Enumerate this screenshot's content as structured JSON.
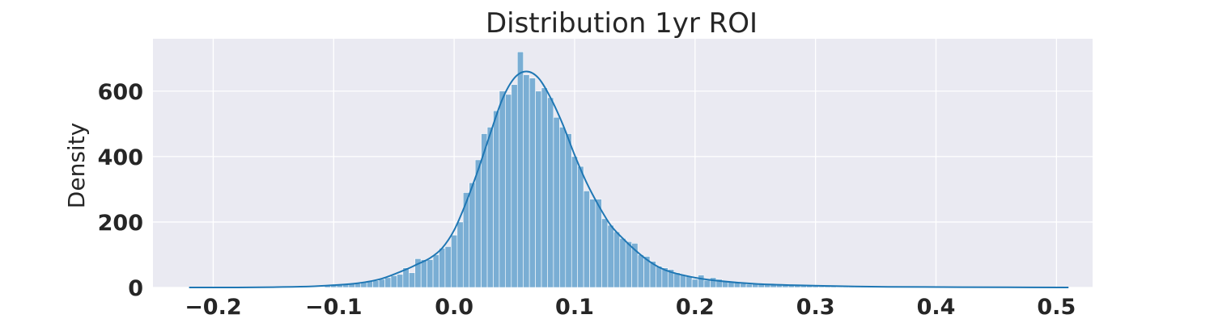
{
  "chart_data": {
    "type": "bar",
    "title": "Distribution 1yr ROI",
    "xlabel": "",
    "ylabel": "Density",
    "xlim": [
      -0.25,
      0.53
    ],
    "ylim": [
      0,
      760
    ],
    "xticks": [
      -0.2,
      -0.1,
      0.0,
      0.1,
      0.2,
      0.3,
      0.4,
      0.5
    ],
    "xtick_labels": [
      "−0.2",
      "−0.1",
      "0.0",
      "0.1",
      "0.2",
      "0.3",
      "0.4",
      "0.5"
    ],
    "yticks": [
      0,
      200,
      400,
      600
    ],
    "ytick_labels": [
      "0",
      "200",
      "400",
      "600"
    ],
    "grid": true,
    "colors": {
      "bar": "#7aaed4",
      "bar_edge": "#ffffff",
      "kde": "#1f77b4",
      "plot_bg": "#eaeaf2",
      "grid": "#ffffff"
    },
    "series": [
      {
        "kind": "histogram",
        "bins": [
          {
            "x": -0.105,
            "y": 5
          },
          {
            "x": -0.1,
            "y": 8
          },
          {
            "x": -0.095,
            "y": 9
          },
          {
            "x": -0.09,
            "y": 10
          },
          {
            "x": -0.085,
            "y": 11
          },
          {
            "x": -0.08,
            "y": 12
          },
          {
            "x": -0.075,
            "y": 16
          },
          {
            "x": -0.07,
            "y": 19
          },
          {
            "x": -0.065,
            "y": 21
          },
          {
            "x": -0.06,
            "y": 25
          },
          {
            "x": -0.055,
            "y": 30
          },
          {
            "x": -0.05,
            "y": 36
          },
          {
            "x": -0.045,
            "y": 40
          },
          {
            "x": -0.04,
            "y": 60
          },
          {
            "x": -0.035,
            "y": 45
          },
          {
            "x": -0.03,
            "y": 88
          },
          {
            "x": -0.025,
            "y": 85
          },
          {
            "x": -0.02,
            "y": 85
          },
          {
            "x": -0.015,
            "y": 100
          },
          {
            "x": -0.01,
            "y": 120
          },
          {
            "x": -0.005,
            "y": 125
          },
          {
            "x": 0.0,
            "y": 160
          },
          {
            "x": 0.005,
            "y": 200
          },
          {
            "x": 0.01,
            "y": 290
          },
          {
            "x": 0.015,
            "y": 320
          },
          {
            "x": 0.02,
            "y": 390
          },
          {
            "x": 0.025,
            "y": 470
          },
          {
            "x": 0.03,
            "y": 490
          },
          {
            "x": 0.035,
            "y": 540
          },
          {
            "x": 0.04,
            "y": 600
          },
          {
            "x": 0.045,
            "y": 590
          },
          {
            "x": 0.05,
            "y": 620
          },
          {
            "x": 0.055,
            "y": 720
          },
          {
            "x": 0.06,
            "y": 650
          },
          {
            "x": 0.065,
            "y": 640
          },
          {
            "x": 0.07,
            "y": 600
          },
          {
            "x": 0.075,
            "y": 610
          },
          {
            "x": 0.08,
            "y": 580
          },
          {
            "x": 0.085,
            "y": 520
          },
          {
            "x": 0.09,
            "y": 490
          },
          {
            "x": 0.095,
            "y": 470
          },
          {
            "x": 0.1,
            "y": 400
          },
          {
            "x": 0.105,
            "y": 370
          },
          {
            "x": 0.11,
            "y": 295
          },
          {
            "x": 0.115,
            "y": 270
          },
          {
            "x": 0.12,
            "y": 270
          },
          {
            "x": 0.125,
            "y": 210
          },
          {
            "x": 0.13,
            "y": 190
          },
          {
            "x": 0.135,
            "y": 170
          },
          {
            "x": 0.14,
            "y": 150
          },
          {
            "x": 0.145,
            "y": 140
          },
          {
            "x": 0.15,
            "y": 135
          },
          {
            "x": 0.155,
            "y": 100
          },
          {
            "x": 0.16,
            "y": 95
          },
          {
            "x": 0.165,
            "y": 80
          },
          {
            "x": 0.17,
            "y": 65
          },
          {
            "x": 0.175,
            "y": 60
          },
          {
            "x": 0.18,
            "y": 55
          },
          {
            "x": 0.185,
            "y": 45
          },
          {
            "x": 0.19,
            "y": 38
          },
          {
            "x": 0.195,
            "y": 35
          },
          {
            "x": 0.2,
            "y": 25
          },
          {
            "x": 0.205,
            "y": 38
          },
          {
            "x": 0.21,
            "y": 22
          },
          {
            "x": 0.215,
            "y": 30
          },
          {
            "x": 0.22,
            "y": 25
          },
          {
            "x": 0.225,
            "y": 20
          },
          {
            "x": 0.23,
            "y": 18
          },
          {
            "x": 0.235,
            "y": 16
          },
          {
            "x": 0.24,
            "y": 12
          },
          {
            "x": 0.245,
            "y": 10
          },
          {
            "x": 0.25,
            "y": 12
          },
          {
            "x": 0.255,
            "y": 10
          },
          {
            "x": 0.26,
            "y": 9
          },
          {
            "x": 0.265,
            "y": 8
          },
          {
            "x": 0.27,
            "y": 8
          },
          {
            "x": 0.275,
            "y": 7
          },
          {
            "x": 0.28,
            "y": 8
          },
          {
            "x": 0.285,
            "y": 6
          },
          {
            "x": 0.29,
            "y": 5
          },
          {
            "x": 0.295,
            "y": 5
          },
          {
            "x": 0.3,
            "y": 4
          },
          {
            "x": 0.305,
            "y": 3
          },
          {
            "x": 0.31,
            "y": 3
          },
          {
            "x": 0.315,
            "y": 3
          },
          {
            "x": 0.32,
            "y": 2
          },
          {
            "x": 0.325,
            "y": 2
          },
          {
            "x": 0.33,
            "y": 2
          },
          {
            "x": 0.335,
            "y": 2
          },
          {
            "x": 0.34,
            "y": 2
          },
          {
            "x": 0.345,
            "y": 2
          },
          {
            "x": 0.35,
            "y": 2
          },
          {
            "x": 0.355,
            "y": 1
          },
          {
            "x": 0.36,
            "y": 1
          },
          {
            "x": 0.365,
            "y": 1
          },
          {
            "x": 0.37,
            "y": 1
          },
          {
            "x": 0.375,
            "y": 1
          },
          {
            "x": 0.38,
            "y": 1
          },
          {
            "x": 0.385,
            "y": 1
          },
          {
            "x": 0.39,
            "y": 1
          },
          {
            "x": 0.395,
            "y": 1
          },
          {
            "x": 0.4,
            "y": 1
          },
          {
            "x": 0.405,
            "y": 1
          },
          {
            "x": 0.41,
            "y": 1
          },
          {
            "x": 0.415,
            "y": 1
          },
          {
            "x": 0.42,
            "y": 1
          },
          {
            "x": 0.425,
            "y": 1
          },
          {
            "x": 0.43,
            "y": 1
          },
          {
            "x": 0.435,
            "y": 1
          },
          {
            "x": 0.44,
            "y": 1
          },
          {
            "x": 0.445,
            "y": 1
          },
          {
            "x": 0.45,
            "y": 1
          },
          {
            "x": 0.455,
            "y": 1
          },
          {
            "x": 0.46,
            "y": 1
          },
          {
            "x": 0.465,
            "y": 1
          },
          {
            "x": 0.47,
            "y": 1
          },
          {
            "x": 0.475,
            "y": 1
          },
          {
            "x": 0.48,
            "y": 1
          },
          {
            "x": 0.485,
            "y": 1
          },
          {
            "x": 0.49,
            "y": 1
          },
          {
            "x": 0.495,
            "y": 1
          },
          {
            "x": 0.5,
            "y": 1
          }
        ]
      },
      {
        "kind": "kde",
        "points": [
          {
            "x": -0.22,
            "y": 0
          },
          {
            "x": -0.18,
            "y": 0
          },
          {
            "x": -0.15,
            "y": 1
          },
          {
            "x": -0.12,
            "y": 3
          },
          {
            "x": -0.1,
            "y": 7
          },
          {
            "x": -0.08,
            "y": 13
          },
          {
            "x": -0.06,
            "y": 27
          },
          {
            "x": -0.04,
            "y": 55
          },
          {
            "x": -0.03,
            "y": 72
          },
          {
            "x": -0.02,
            "y": 90
          },
          {
            "x": -0.01,
            "y": 120
          },
          {
            "x": 0.0,
            "y": 175
          },
          {
            "x": 0.01,
            "y": 260
          },
          {
            "x": 0.02,
            "y": 360
          },
          {
            "x": 0.03,
            "y": 470
          },
          {
            "x": 0.04,
            "y": 575
          },
          {
            "x": 0.05,
            "y": 640
          },
          {
            "x": 0.06,
            "y": 660
          },
          {
            "x": 0.07,
            "y": 640
          },
          {
            "x": 0.08,
            "y": 580
          },
          {
            "x": 0.09,
            "y": 500
          },
          {
            "x": 0.1,
            "y": 405
          },
          {
            "x": 0.11,
            "y": 320
          },
          {
            "x": 0.12,
            "y": 250
          },
          {
            "x": 0.13,
            "y": 190
          },
          {
            "x": 0.14,
            "y": 150
          },
          {
            "x": 0.15,
            "y": 115
          },
          {
            "x": 0.16,
            "y": 85
          },
          {
            "x": 0.17,
            "y": 62
          },
          {
            "x": 0.18,
            "y": 47
          },
          {
            "x": 0.2,
            "y": 30
          },
          {
            "x": 0.22,
            "y": 20
          },
          {
            "x": 0.25,
            "y": 11
          },
          {
            "x": 0.28,
            "y": 7
          },
          {
            "x": 0.32,
            "y": 4
          },
          {
            "x": 0.36,
            "y": 2
          },
          {
            "x": 0.42,
            "y": 1
          },
          {
            "x": 0.51,
            "y": 0
          }
        ]
      }
    ]
  }
}
